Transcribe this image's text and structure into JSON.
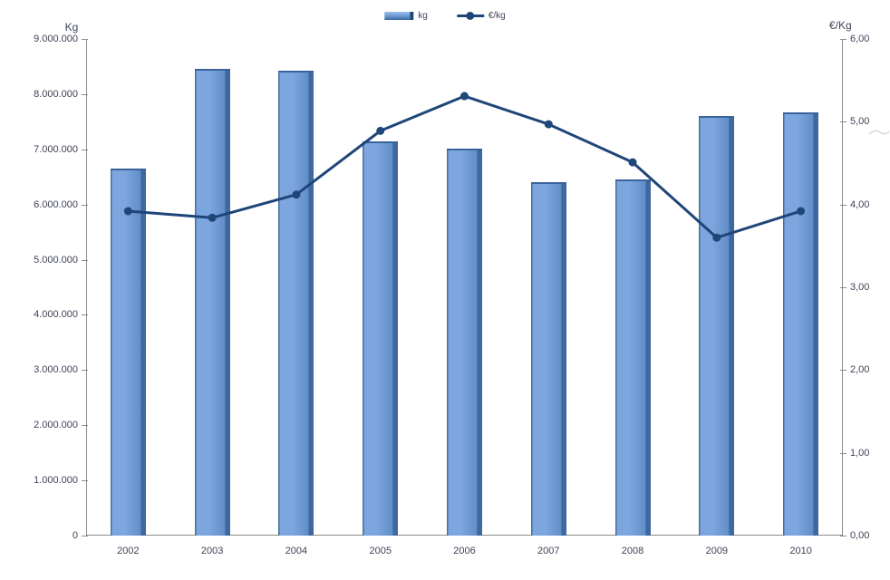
{
  "chart_data": {
    "type": "combo-bar-line",
    "title": "",
    "categories": [
      "2002",
      "2003",
      "2004",
      "2005",
      "2006",
      "2007",
      "2008",
      "2009",
      "2010"
    ],
    "series": [
      {
        "name": "kg",
        "type": "bar",
        "axis": "left",
        "color": "#6f9ad3",
        "values": [
          6650000,
          8460000,
          8420000,
          7150000,
          7010000,
          6410000,
          6460000,
          7610000,
          7670000
        ]
      },
      {
        "name": "€/kg",
        "type": "line",
        "axis": "right",
        "color": "#1f4679",
        "values": [
          3.92,
          3.84,
          4.12,
          4.89,
          5.31,
          4.97,
          4.51,
          3.6,
          3.92
        ]
      }
    ],
    "left_axis": {
      "title": "Kg",
      "range": [
        0,
        9000000
      ],
      "tick_step": 1000000,
      "tick_labels": [
        "0",
        "1.000.000",
        "2.000.000",
        "3.000.000",
        "4.000.000",
        "5.000.000",
        "6.000.000",
        "7.000.000",
        "8.000.000",
        "9.000.000"
      ]
    },
    "right_axis": {
      "title": "€/Kg",
      "range": [
        0,
        6
      ],
      "tick_step": 1,
      "tick_labels": [
        "0,00",
        "1,00",
        "2,00",
        "3,00",
        "4,00",
        "5,00",
        "6,00"
      ]
    },
    "grid": false,
    "legend_position": "top-center",
    "plot_background": "#ffffff",
    "axis_line_color": "#8c8c8c",
    "label_color": "#3f4358"
  }
}
